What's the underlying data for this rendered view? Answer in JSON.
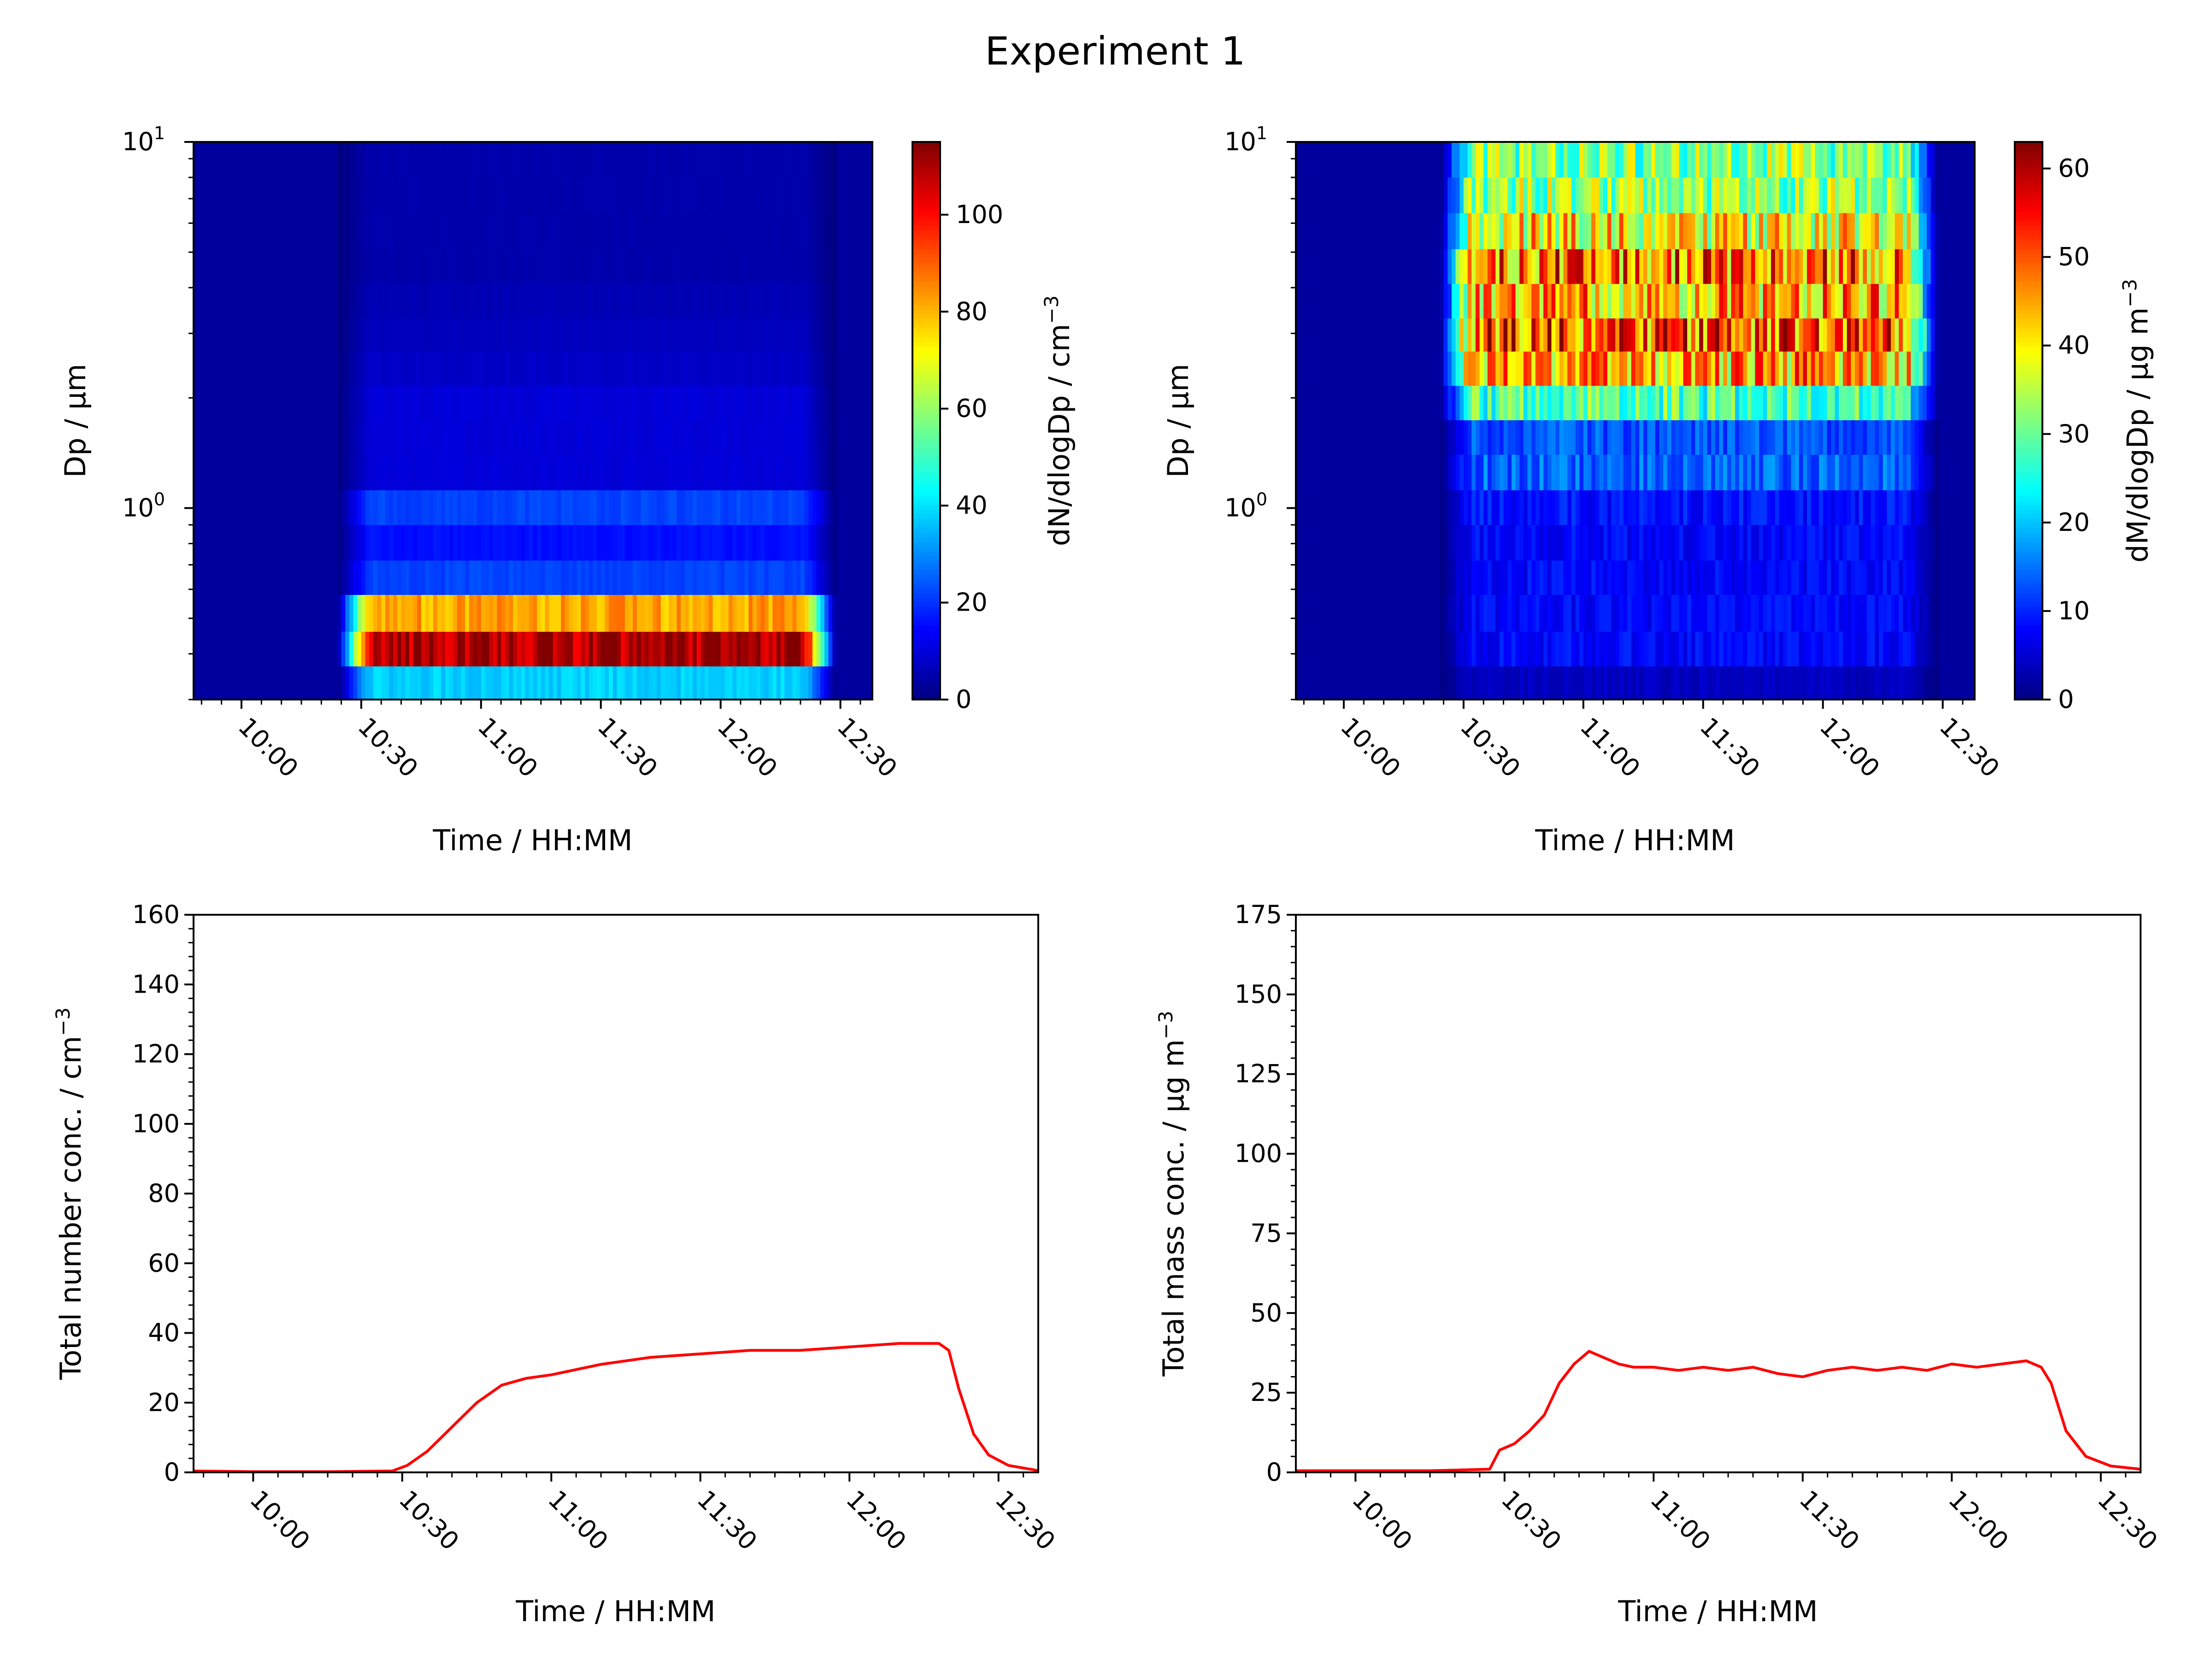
{
  "figure": {
    "title": "Experiment 1"
  },
  "chart_data": [
    {
      "type": "heatmap",
      "panel": "top-left",
      "xlabel": "Time / HH:MM",
      "ylabel": "Dp / μm",
      "y_scale": "log",
      "xlim": [
        "09:48",
        "12:38"
      ],
      "ylim": [
        0.3,
        10
      ],
      "xticks": [
        "10:00",
        "10:30",
        "11:00",
        "11:30",
        "12:00",
        "12:30"
      ],
      "yticks": [
        {
          "base": "10",
          "exp": "1",
          "value": 10
        },
        {
          "base": "10",
          "exp": "0",
          "value": 1
        }
      ],
      "active_period": [
        "10:32",
        "12:21"
      ],
      "size_bins_um": [
        0.3,
        0.37,
        0.46,
        0.58,
        0.72,
        0.9,
        1.12,
        1.4,
        1.74,
        2.16,
        2.68,
        3.3,
        4.1,
        5.1,
        6.4,
        8.0,
        10.0
      ],
      "bin_levels": [
        38,
        110,
        82,
        22,
        16,
        22,
        10,
        10,
        10,
        8,
        7,
        6,
        5,
        5,
        5,
        5
      ],
      "colorbar": {
        "label": "dN/dlogDp / cm",
        "label_exponent": "−3",
        "range": [
          0,
          115
        ],
        "ticks": [
          "0",
          "20",
          "40",
          "60",
          "80",
          "100"
        ],
        "tick_values": [
          0,
          20,
          40,
          60,
          80,
          100
        ],
        "colormap": "jet"
      }
    },
    {
      "type": "heatmap",
      "panel": "top-right",
      "xlabel": "Time / HH:MM",
      "ylabel": "Dp / μm",
      "y_scale": "log",
      "xlim": [
        "09:48",
        "12:38"
      ],
      "ylim": [
        0.3,
        10
      ],
      "xticks": [
        "10:00",
        "10:30",
        "11:00",
        "11:30",
        "12:00",
        "12:30"
      ],
      "yticks": [
        {
          "base": "10",
          "exp": "1",
          "value": 10
        },
        {
          "base": "10",
          "exp": "0",
          "value": 1
        }
      ],
      "active_period": [
        "10:32",
        "12:21"
      ],
      "size_bins_um": [
        0.3,
        0.37,
        0.46,
        0.58,
        0.72,
        0.9,
        1.12,
        1.4,
        1.74,
        2.16,
        2.68,
        3.3,
        4.1,
        5.1,
        6.4,
        8.0,
        10.0
      ],
      "bin_levels": [
        4,
        8,
        8,
        8,
        8,
        9,
        14,
        13,
        28,
        44,
        50,
        44,
        48,
        40,
        33,
        32
      ],
      "colorbar": {
        "label": "dM/dlogDp / μg m",
        "label_exponent": "−3",
        "range": [
          0,
          63
        ],
        "ticks": [
          "0",
          "10",
          "20",
          "30",
          "40",
          "50",
          "60"
        ],
        "tick_values": [
          0,
          10,
          20,
          30,
          40,
          50,
          60
        ],
        "colormap": "jet"
      }
    },
    {
      "type": "line",
      "panel": "bottom-left",
      "xlabel": "Time / HH:MM",
      "ylabel": "Total number conc. / cm",
      "ylabel_exponent": "−3",
      "xlim": [
        "09:48",
        "12:38"
      ],
      "ylim": [
        0,
        160
      ],
      "xticks": [
        "10:00",
        "10:30",
        "11:00",
        "11:30",
        "12:00",
        "12:30"
      ],
      "yticks": [
        "0",
        "20",
        "40",
        "60",
        "80",
        "100",
        "120",
        "140",
        "160"
      ],
      "series": [
        {
          "color": "#ff0000",
          "x": [
            "09:48",
            "10:00",
            "10:15",
            "10:28",
            "10:31",
            "10:35",
            "10:40",
            "10:45",
            "10:50",
            "10:55",
            "11:00",
            "11:10",
            "11:20",
            "11:30",
            "11:40",
            "11:50",
            "12:00",
            "12:10",
            "12:18",
            "12:20",
            "12:22",
            "12:25",
            "12:28",
            "12:32",
            "12:38"
          ],
          "y": [
            0.4,
            0.2,
            0.2,
            0.4,
            2,
            6,
            13,
            20,
            25,
            27,
            28,
            31,
            33,
            34,
            35,
            35,
            36,
            37,
            37,
            35,
            24,
            11,
            5,
            2,
            0.5
          ]
        }
      ]
    },
    {
      "type": "line",
      "panel": "bottom-right",
      "xlabel": "Time / HH:MM",
      "ylabel": "Total mass conc. / μg m",
      "ylabel_exponent": "−3",
      "xlim": [
        "09:48",
        "12:38"
      ],
      "ylim": [
        0,
        175
      ],
      "xticks": [
        "10:00",
        "10:30",
        "11:00",
        "11:30",
        "12:00",
        "12:30"
      ],
      "yticks": [
        "0",
        "25",
        "50",
        "75",
        "100",
        "125",
        "150",
        "175"
      ],
      "series": [
        {
          "color": "#ff0000",
          "x": [
            "09:48",
            "10:00",
            "10:15",
            "10:27",
            "10:29",
            "10:32",
            "10:35",
            "10:38",
            "10:41",
            "10:44",
            "10:47",
            "10:50",
            "10:53",
            "10:56",
            "11:00",
            "11:05",
            "11:10",
            "11:15",
            "11:20",
            "11:25",
            "11:30",
            "11:35",
            "11:40",
            "11:45",
            "11:50",
            "11:55",
            "12:00",
            "12:05",
            "12:10",
            "12:15",
            "12:18",
            "12:20",
            "12:23",
            "12:27",
            "12:32",
            "12:38"
          ],
          "y": [
            0.5,
            0.5,
            0.5,
            1,
            7,
            9,
            13,
            18,
            28,
            34,
            38,
            36,
            34,
            33,
            33,
            32,
            33,
            32,
            33,
            31,
            30,
            32,
            33,
            32,
            33,
            32,
            34,
            33,
            34,
            35,
            33,
            28,
            13,
            5,
            2,
            1
          ]
        }
      ]
    }
  ]
}
